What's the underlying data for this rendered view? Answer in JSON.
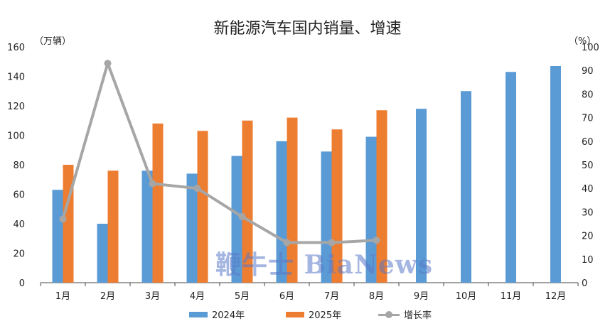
{
  "title": "新能源汽车国内销量、增速",
  "left_unit": "（万辆）",
  "right_unit": "（%）",
  "watermark": "鞭牛士 BiaNews",
  "colors": {
    "series_2024": "#5b9bd5",
    "series_2025": "#ed7d31",
    "growth": "#a6a6a6",
    "axis": "#444444"
  },
  "chart_data": {
    "type": "bar",
    "title": "新能源汽车国内销量、增速",
    "categories": [
      "1月",
      "2月",
      "3月",
      "4月",
      "5月",
      "6月",
      "7月",
      "8月",
      "9月",
      "10月",
      "11月",
      "12月"
    ],
    "series": [
      {
        "name": "2024年",
        "axis": "left",
        "values": [
          63,
          40,
          76,
          74,
          86,
          96,
          89,
          99,
          118,
          130,
          143,
          147
        ]
      },
      {
        "name": "2025年",
        "axis": "left",
        "values": [
          80,
          76,
          108,
          103,
          110,
          112,
          104,
          117,
          null,
          null,
          null,
          null
        ]
      },
      {
        "name": "增长率",
        "type": "line",
        "axis": "right",
        "values": [
          27,
          93,
          42,
          40,
          28,
          17,
          17,
          18,
          null,
          null,
          null,
          null
        ]
      }
    ],
    "ylim_left": [
      0,
      160
    ],
    "yticks_left": [
      0,
      20,
      40,
      60,
      80,
      100,
      120,
      140,
      160
    ],
    "ylim_right": [
      0,
      100
    ],
    "yticks_right": [
      0,
      10,
      20,
      30,
      40,
      50,
      60,
      70,
      80,
      90,
      100
    ],
    "ylabel_left": "（万辆）",
    "ylabel_right": "（%）",
    "legend": "bottom",
    "grid": false
  }
}
